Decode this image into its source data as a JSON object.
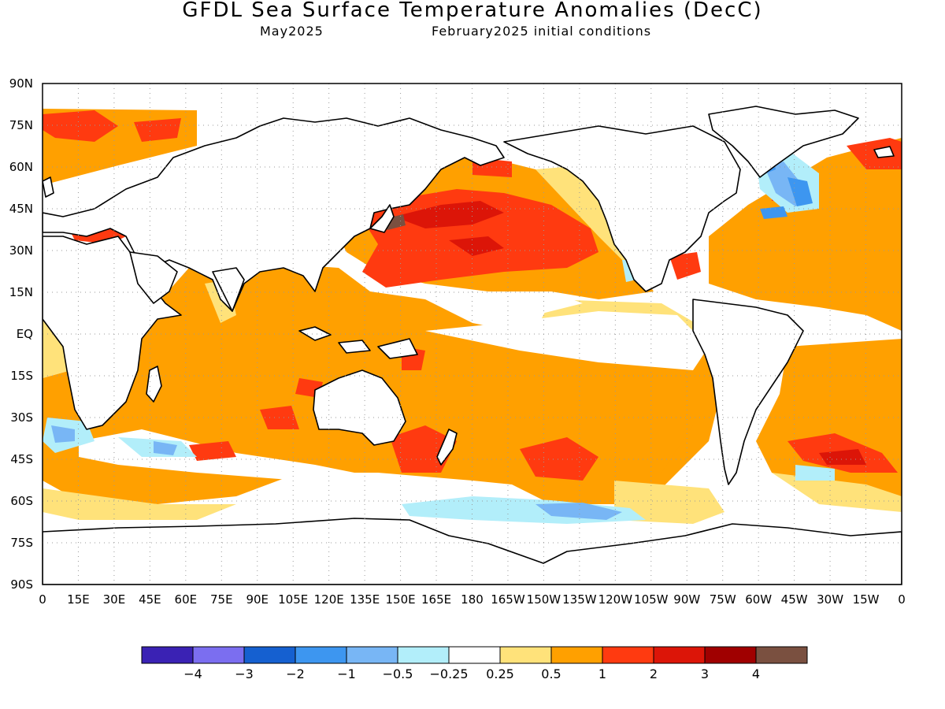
{
  "header": {
    "title": "GFDL Sea Surface Temperature Anomalies (DecC)",
    "valid_month": "May2025",
    "init_label": "February2025 initial conditions"
  },
  "map": {
    "projection": "cylindrical",
    "lat_ticks": [
      "90N",
      "75N",
      "60N",
      "45N",
      "30N",
      "15N",
      "EQ",
      "15S",
      "30S",
      "45S",
      "60S",
      "75S",
      "90S"
    ],
    "lon_ticks": [
      "0",
      "15E",
      "30E",
      "45E",
      "60E",
      "75E",
      "90E",
      "105E",
      "120E",
      "135E",
      "150E",
      "165E",
      "180",
      "165W",
      "150W",
      "135W",
      "120W",
      "105W",
      "90W",
      "75W",
      "60W",
      "45W",
      "30W",
      "15W",
      "0"
    ],
    "grid": "dotted",
    "background": "#ffffff"
  },
  "colorbar": {
    "colors": [
      "#3a22b4",
      "#7b6ef0",
      "#1560d0",
      "#3d96f0",
      "#78b6f5",
      "#b2eefa",
      "#ffffff",
      "#ffe27a",
      "#ffa000",
      "#ff3a10",
      "#dc1508",
      "#a00000",
      "#7a5040"
    ],
    "labels": [
      "-4",
      "-3",
      "-2",
      "-1",
      "-0.5",
      "-0.25",
      "0.25",
      "0.5",
      "1",
      "2",
      "3",
      "4"
    ]
  }
}
